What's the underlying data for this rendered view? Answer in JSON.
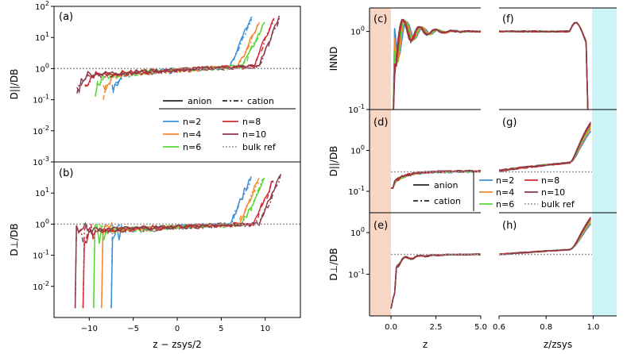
{
  "colors": {
    "n2": "#3d8fd6",
    "n4": "#f28a2e",
    "n6": "#5bd43a",
    "n8": "#d62a36",
    "n10": "#8c3a4a",
    "ref": "#999999",
    "wall_left": "#f7d7c4",
    "wall_right": "#ccf4f6"
  },
  "chart_data": {
    "type": "line",
    "legend": {
      "style_entries": [
        "anion",
        "cation"
      ],
      "series_entries": [
        "n=2",
        "n=4",
        "n=6",
        "n=8",
        "n=10",
        "bulk ref"
      ]
    },
    "panels": [
      {
        "id": "a",
        "label": "(a)",
        "ylabel": "D||/DB",
        "yscale": "log",
        "ylim": [
          0.001,
          100
        ],
        "xlim": [
          -14,
          14
        ],
        "bulk_ref": 1.0,
        "yticks": [
          "10-3",
          "10-2",
          "10-1",
          "100",
          "101",
          "102"
        ],
        "series_end": [
          {
            "name": "n=2",
            "z_end": 8.5,
            "max": 50
          },
          {
            "name": "n=4",
            "z_end": 9.5,
            "max": 40
          },
          {
            "name": "n=6",
            "z_end": 10,
            "max": 35
          },
          {
            "name": "n=8",
            "z_end": 11.2,
            "max": 55
          },
          {
            "name": "n=10",
            "z_end": 11.8,
            "max": 60
          }
        ]
      },
      {
        "id": "b",
        "label": "(b)",
        "ylabel": "D⊥/DB",
        "yscale": "log",
        "ylim": [
          0.001,
          100
        ],
        "xlim": [
          -14,
          14
        ],
        "bulk_ref": 1.0,
        "xlabel": "z − zsys/2",
        "xticks": [
          "−10",
          "−5",
          "0",
          "5",
          "10"
        ],
        "series_end": [
          {
            "name": "n=2",
            "z_start": -7.5,
            "z_end": 8.5
          },
          {
            "name": "n=4",
            "z_start": -8.6,
            "z_end": 9.5
          },
          {
            "name": "n=6",
            "z_start": -9.5,
            "z_end": 10
          },
          {
            "name": "n=8",
            "z_start": -10.7,
            "z_end": 11.2
          },
          {
            "name": "n=10",
            "z_start": -11.6,
            "z_end": 11.8
          }
        ]
      },
      {
        "id": "c",
        "label": "(c)",
        "ylabel": "INND",
        "yscale": "log",
        "ylim": [
          0.1,
          2
        ],
        "xlim": [
          -1.2,
          5
        ],
        "yticks": [
          "10-1",
          "100"
        ]
      },
      {
        "id": "d",
        "label": "(d)",
        "ylabel": "D||/DB",
        "yscale": "log",
        "ylim": [
          0.03,
          10
        ],
        "xlim": [
          -1.2,
          5
        ],
        "bulk_ref": 0.3,
        "yticks": [
          "10-1",
          "100"
        ]
      },
      {
        "id": "e",
        "label": "(e)",
        "ylabel": "D⊥/DB",
        "yscale": "log",
        "ylim": [
          0.01,
          3
        ],
        "xlim": [
          -1.2,
          5
        ],
        "bulk_ref": 0.3,
        "xlabel": "z",
        "xticks": [
          "0.0",
          "2.5",
          "5.0"
        ],
        "yticks": [
          "10-1",
          "100"
        ]
      },
      {
        "id": "f",
        "label": "(f)",
        "yscale": "log",
        "ylim": [
          0.1,
          2
        ],
        "xlim": [
          0.6,
          1.1
        ]
      },
      {
        "id": "g",
        "label": "(g)",
        "yscale": "log",
        "ylim": [
          0.03,
          10
        ],
        "xlim": [
          0.6,
          1.1
        ],
        "bulk_ref": 0.3
      },
      {
        "id": "h",
        "label": "(h)",
        "yscale": "log",
        "ylim": [
          0.01,
          3
        ],
        "xlim": [
          0.6,
          1.1
        ],
        "bulk_ref": 0.3,
        "xlabel": "z/zsys",
        "xticks": [
          "0.6",
          "0.8",
          "1.0"
        ]
      }
    ]
  }
}
